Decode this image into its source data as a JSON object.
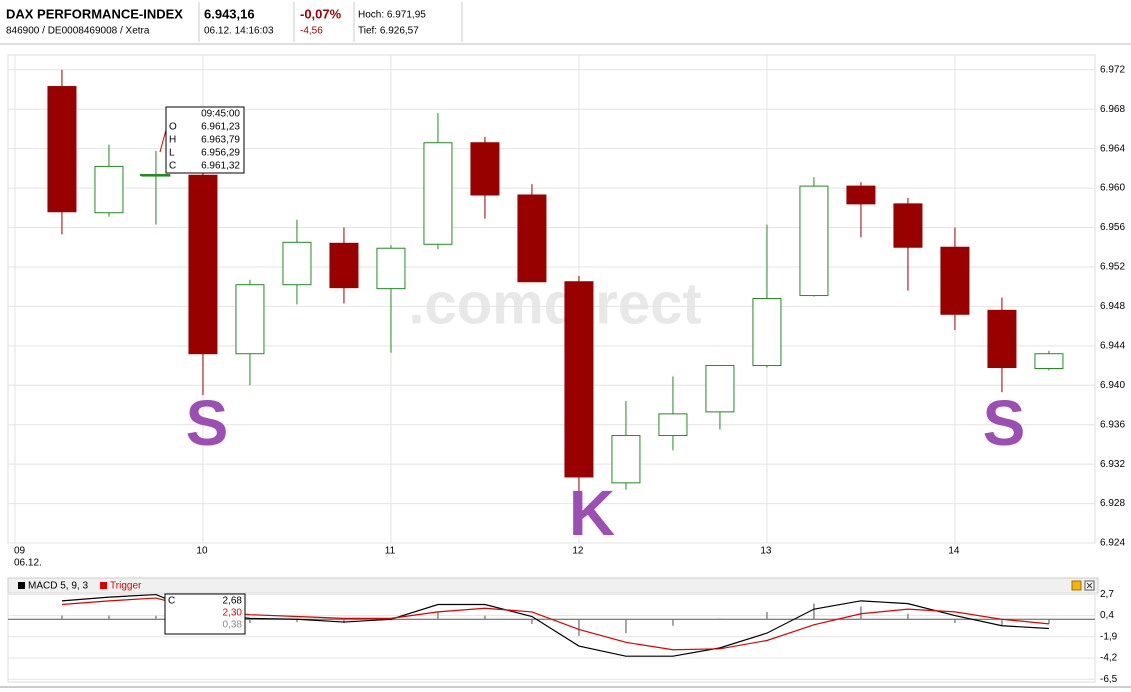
{
  "header": {
    "name": "DAX PERFORMANCE-INDEX",
    "ids": "846900 / DE0008469008 / Xetra",
    "last": "6.943,16",
    "time": "06.12. 14:16:03",
    "change_pct": "-0,07%",
    "change": "-4,56",
    "high": "Hoch: 6.971,95",
    "low": "Tief: 6.926,57"
  },
  "chart_data": [
    {
      "type": "candlestick",
      "watermark": ".comdirect",
      "annotations": [
        "S",
        "K",
        "S"
      ],
      "up_color": "#228b22",
      "down_color": "#990000",
      "x": [
        9.25,
        9.5,
        9.75,
        10,
        10.25,
        10.5,
        10.75,
        11,
        11.25,
        11.5,
        11.75,
        12,
        12.25,
        12.5,
        12.75,
        13,
        13.25,
        13.5,
        13.75,
        14,
        14.25,
        14.5
      ],
      "open": [
        6970.3,
        6957.5,
        6961.23,
        6961.3,
        6943.2,
        6950.2,
        6954.4,
        6949.8,
        6954.3,
        6964.6,
        6959.3,
        6950.5,
        6930.1,
        6934.9,
        6937.3,
        6942.0,
        6949.1,
        6960.2,
        6958.4,
        6954.0,
        6947.6,
        6941.7
      ],
      "high": [
        6972.0,
        6964.4,
        6963.79,
        6961.8,
        6950.7,
        6956.8,
        6956.0,
        6954.2,
        6967.6,
        6965.2,
        6960.4,
        6951.1,
        6938.4,
        6940.9,
        6942.0,
        6956.3,
        6961.1,
        6960.6,
        6959.0,
        6956.0,
        6948.9,
        6943.5
      ],
      "low": [
        6955.3,
        6957.1,
        6956.29,
        6939.0,
        6940.0,
        6948.2,
        6948.3,
        6943.3,
        6953.8,
        6956.9,
        6950.5,
        6928.9,
        6929.4,
        6933.4,
        6935.5,
        6941.8,
        6949.0,
        6955.0,
        6949.6,
        6945.6,
        6939.3,
        6941.5
      ],
      "close": [
        6957.6,
        6962.2,
        6961.32,
        6943.2,
        6950.2,
        6954.5,
        6949.9,
        6953.9,
        6964.6,
        6959.3,
        6950.5,
        6930.7,
        6934.9,
        6937.1,
        6942.0,
        6948.8,
        6960.2,
        6958.4,
        6954.0,
        6947.2,
        6941.8,
        6943.2
      ],
      "xlim": [
        8.963,
        14.745
      ],
      "xticks": [
        {
          "value": 9,
          "label": "09"
        },
        10,
        11,
        12,
        13,
        14
      ],
      "date_label": "06.12.",
      "ylim": [
        6924,
        6973.5
      ],
      "yticks": [
        {
          "value": 6972,
          "label": "6.972"
        },
        {
          "value": 6968,
          "label": "6.968"
        },
        {
          "value": 6964,
          "label": "6.964"
        },
        {
          "value": 6960,
          "label": "6.960"
        },
        {
          "value": 6956,
          "label": "6.956"
        },
        {
          "value": 6952,
          "label": "6.952"
        },
        {
          "value": 6948,
          "label": "6.948"
        },
        {
          "value": 6944,
          "label": "6.944"
        },
        {
          "value": 6940,
          "label": "6.940"
        },
        {
          "value": 6936,
          "label": "6.936"
        },
        {
          "value": 6932,
          "label": "6.932"
        },
        {
          "value": 6928,
          "label": "6.928"
        },
        {
          "value": 6924,
          "label": "6.924"
        }
      ],
      "grid": true,
      "tooltip": {
        "time": "09:45:00",
        "rows": [
          {
            "key": "O",
            "value": "6.961,23"
          },
          {
            "key": "H",
            "value": "6.963,79"
          },
          {
            "key": "L",
            "value": "6.956,29"
          },
          {
            "key": "C",
            "value": "6.961,32"
          }
        ]
      }
    },
    {
      "type": "line",
      "x": [
        9.25,
        9.5,
        9.75,
        10,
        10.25,
        10.5,
        10.75,
        11,
        11.25,
        11.5,
        11.75,
        12,
        12.25,
        12.5,
        12.75,
        13,
        13.25,
        13.5,
        13.75,
        14,
        14.25,
        14.5
      ],
      "series": [
        {
          "name": "MACD 5, 9, 3",
          "color": "#000000",
          "values": [
            2.0,
            2.4,
            2.68,
            0.6,
            0.1,
            0.0,
            -0.3,
            0.0,
            1.6,
            1.6,
            0.3,
            -2.9,
            -4.0,
            -4.0,
            -3.1,
            -1.5,
            1.1,
            2.0,
            1.7,
            0.4,
            -0.7,
            -1.0
          ]
        },
        {
          "name": "Trigger",
          "color": "#dd0000",
          "values": [
            1.6,
            2.0,
            2.3,
            1.0,
            0.5,
            0.3,
            0.1,
            0.1,
            0.8,
            1.2,
            0.8,
            -1.1,
            -2.5,
            -3.3,
            -3.2,
            -2.3,
            -0.6,
            0.6,
            1.1,
            0.8,
            0.0,
            -0.5
          ]
        }
      ],
      "histogram": {
        "color": "#888888",
        "values": [
          0.4,
          0.4,
          0.38,
          -0.4,
          -0.4,
          -0.3,
          -0.4,
          -0.1,
          0.8,
          0.4,
          -0.5,
          -1.8,
          -1.5,
          -0.7,
          0.1,
          0.8,
          1.7,
          1.4,
          0.6,
          -0.4,
          -0.7,
          -0.5
        ]
      },
      "xlim": [
        8.963,
        14.745
      ],
      "ylim": [
        -6.8,
        2.85
      ],
      "yticks": [
        {
          "value": 2.7,
          "label": "2,7"
        },
        {
          "value": 0.4,
          "label": "0,4"
        },
        {
          "value": -1.9,
          "label": "-1,9"
        },
        {
          "value": -4.2,
          "label": "-4,2"
        },
        {
          "value": -6.5,
          "label": "-6,5"
        }
      ],
      "grid": true,
      "tooltip": {
        "key": "C",
        "values": [
          "2,68",
          "2,30",
          "0,38"
        ],
        "colors": [
          "#000000",
          "#dd0000",
          "#888888"
        ]
      }
    }
  ]
}
